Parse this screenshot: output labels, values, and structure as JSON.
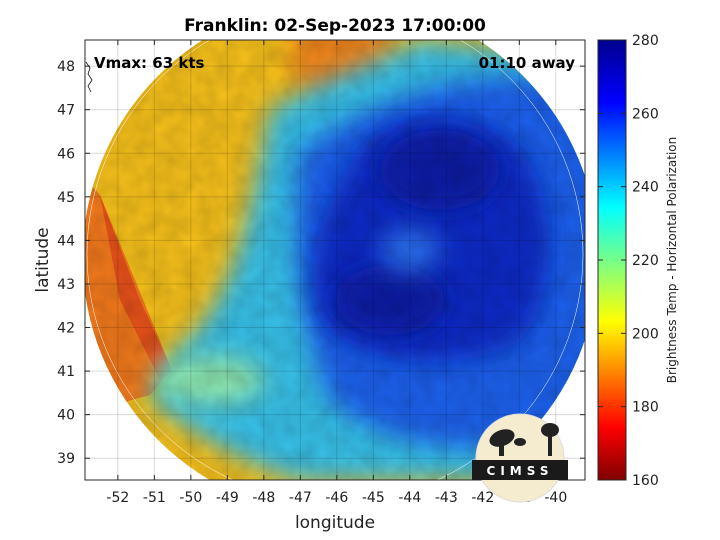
{
  "chart_data": {
    "type": "heatmap",
    "title": "Franklin: 02-Sep-2023 17:00:00",
    "xlabel": "longitude",
    "ylabel": "latitude",
    "xlim": [
      -52.9,
      -39.2
    ],
    "ylim": [
      38.5,
      48.6
    ],
    "x_ticks": [
      -52,
      -51,
      -50,
      -49,
      -48,
      -47,
      -46,
      -45,
      -44,
      -43,
      -42,
      -41,
      -40
    ],
    "y_ticks": [
      39,
      40,
      41,
      42,
      43,
      44,
      45,
      46,
      47,
      48
    ],
    "grid": true,
    "annotations": {
      "vmax": "Vmax: 63 kts",
      "distance": "01:10 away"
    },
    "colorbar": {
      "label": "Brightness Temp - Horizontal Polarization",
      "min": 160,
      "max": 280,
      "ticks": [
        160,
        180,
        200,
        220,
        240,
        260,
        280
      ],
      "colormap": "jet"
    },
    "swath": {
      "shape": "circular scan",
      "center_lon": -45.9,
      "center_lat": 43.6,
      "radius_deg": 6.6
    },
    "regions": [
      {
        "name": "western-warm",
        "value": 200,
        "lon": -49.5,
        "lat": 44.5
      },
      {
        "name": "far-west-edge",
        "value": 188,
        "lon": -51.6,
        "lat": 42.5
      },
      {
        "name": "transition",
        "value": 230,
        "lon": -48.0,
        "lat": 41.0
      },
      {
        "name": "cold-core",
        "value": 262,
        "lon": -44.0,
        "lat": 44.0
      }
    ]
  },
  "logo": {
    "text": "CIMSS"
  }
}
